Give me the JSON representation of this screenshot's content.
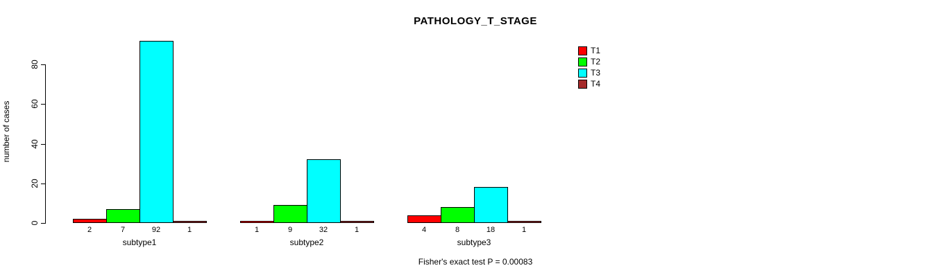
{
  "chart_data": {
    "type": "bar",
    "title": "PATHOLOGY_T_STAGE",
    "xlabel": "",
    "ylabel": "number of cases",
    "annotation": "Fisher's exact test P = 0.00083",
    "categories": [
      "subtype1",
      "subtype2",
      "subtype3"
    ],
    "series": [
      {
        "name": "T1",
        "color": "#FF0000",
        "values": [
          2,
          1,
          4
        ]
      },
      {
        "name": "T2",
        "color": "#00FF00",
        "values": [
          7,
          9,
          8
        ]
      },
      {
        "name": "T3",
        "color": "#00FFFF",
        "values": [
          92,
          32,
          18
        ]
      },
      {
        "name": "T4",
        "color": "#A52A2A",
        "values": [
          1,
          1,
          1
        ]
      }
    ],
    "bar_value_labels": [
      [
        "2",
        "7",
        "92",
        "1"
      ],
      [
        "1",
        "9",
        "32",
        "1"
      ],
      [
        "4",
        "8",
        "18",
        "1"
      ]
    ],
    "yticks": [
      0,
      20,
      40,
      60,
      80
    ],
    "ylim": [
      0,
      80
    ],
    "grid": false,
    "legend_position": "right",
    "legend_entries": [
      "T1",
      "T2",
      "T3",
      "T4"
    ]
  }
}
